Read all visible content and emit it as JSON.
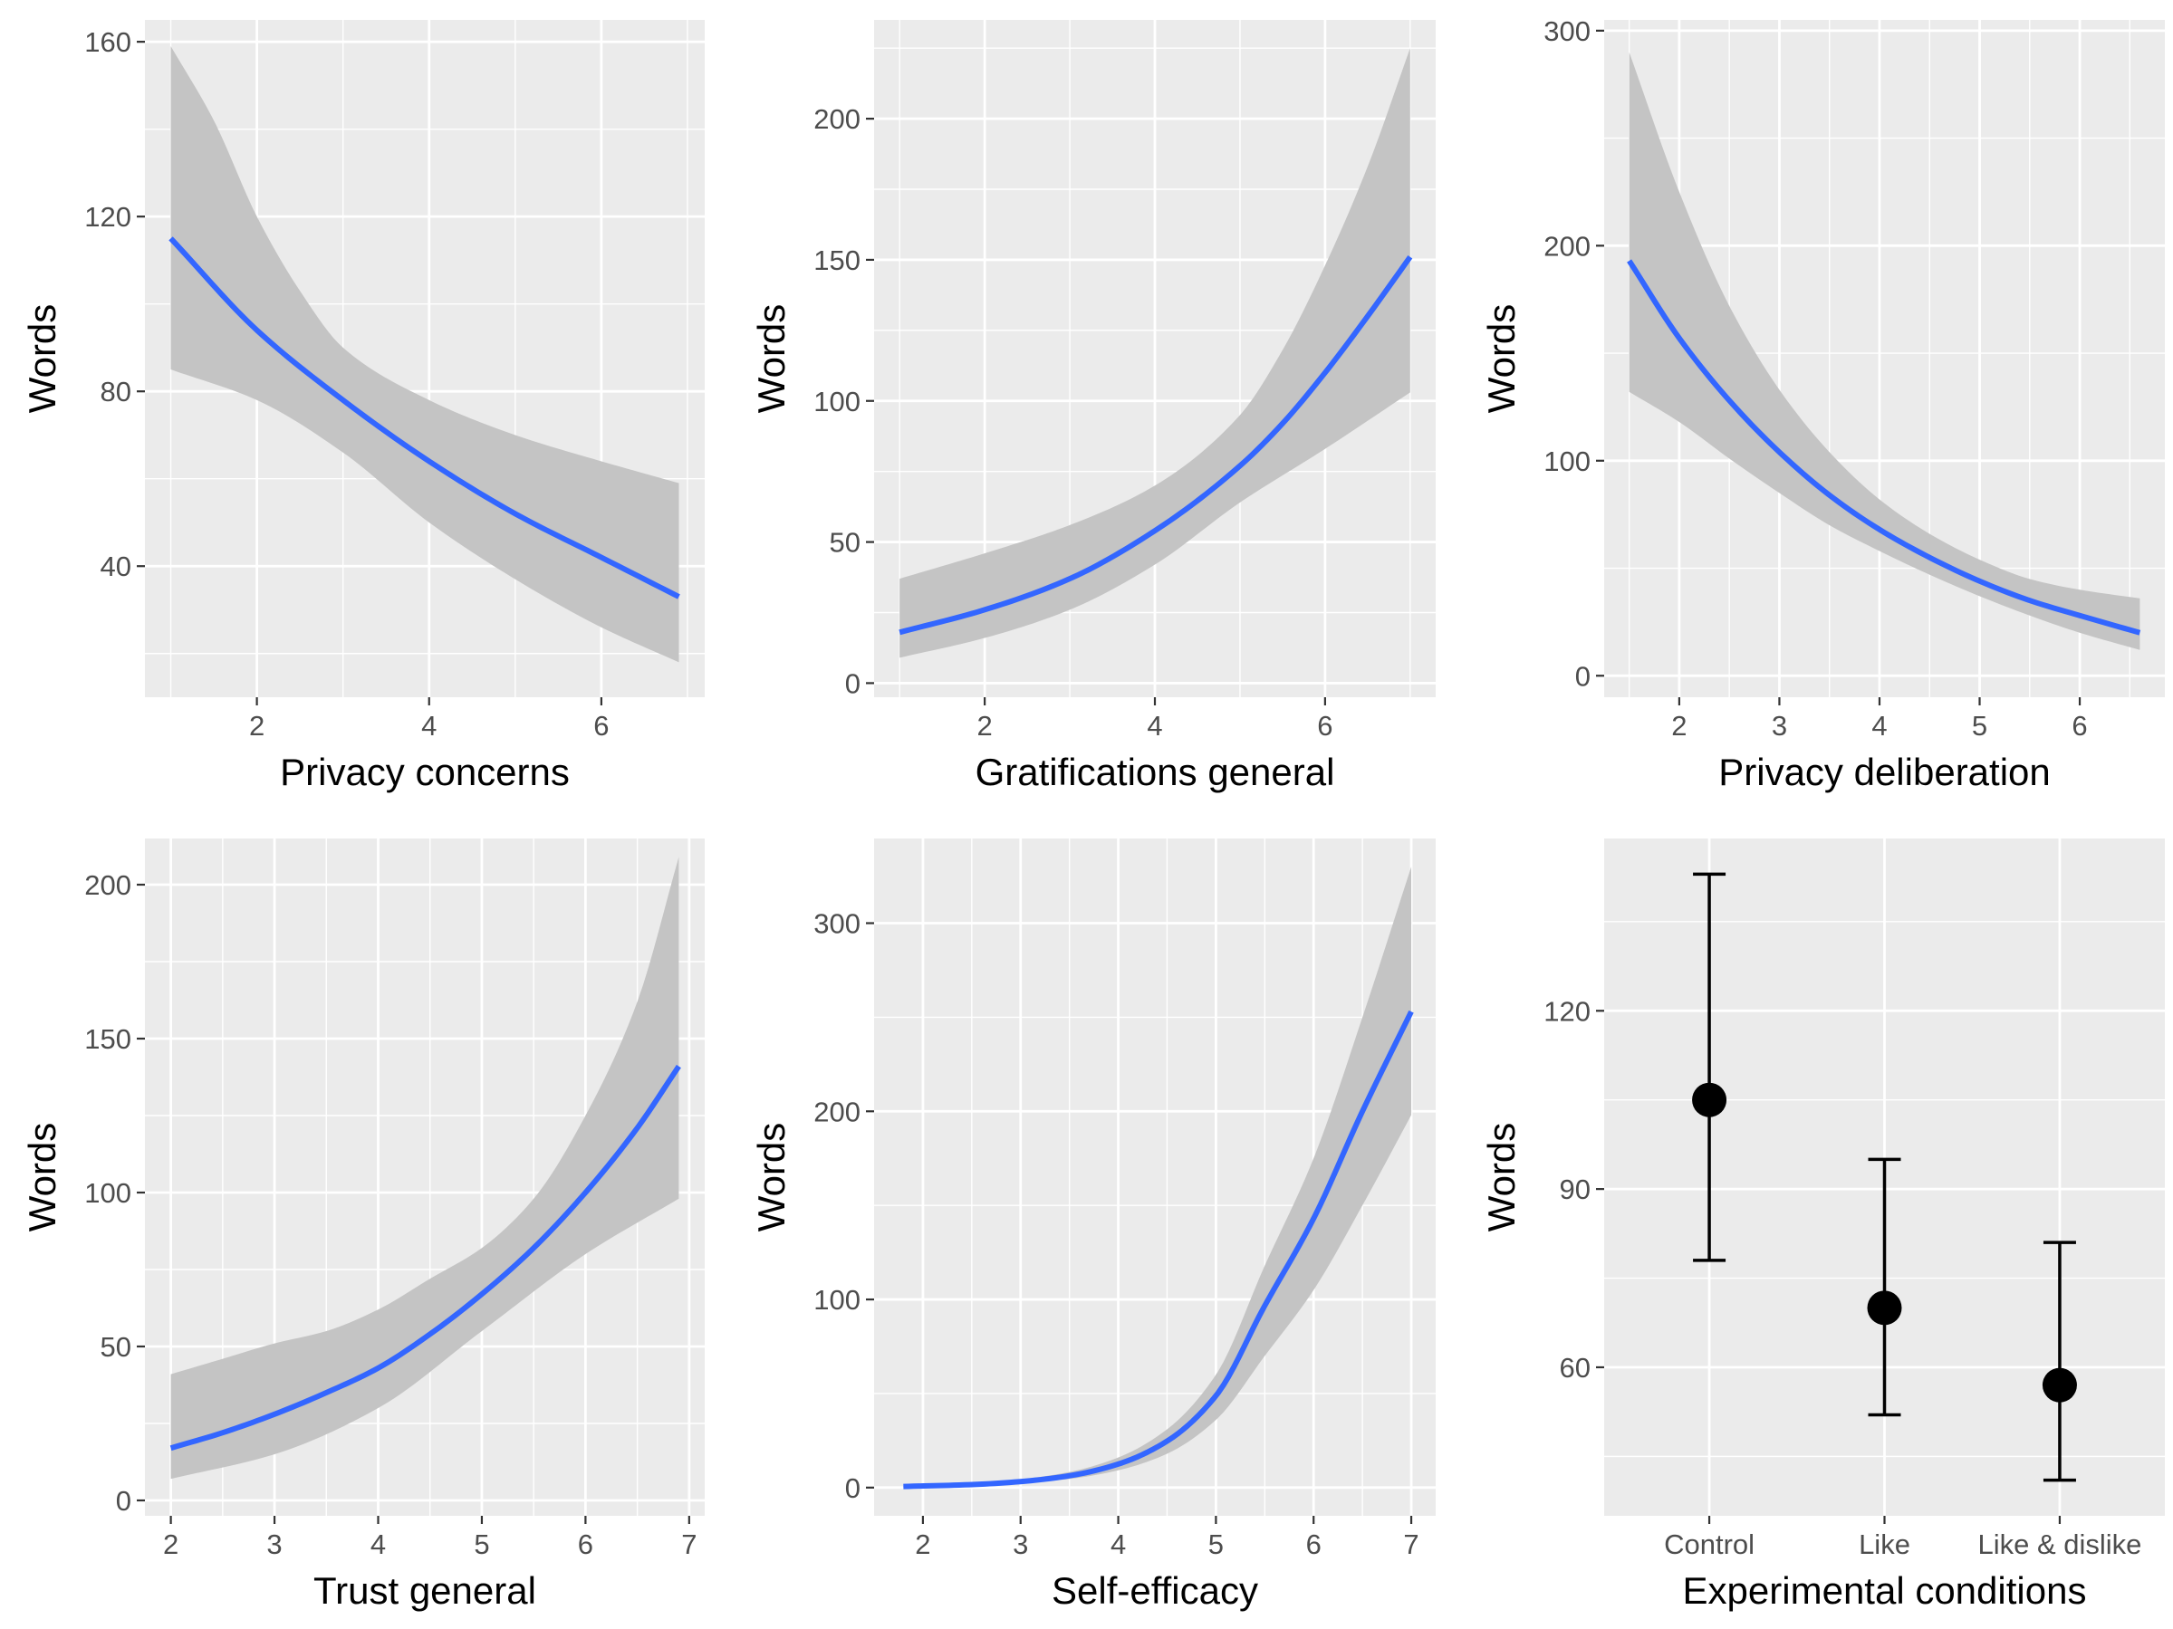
{
  "colors": {
    "panel_background": "#ebebeb",
    "grid_major": "#ffffff",
    "ribbon": "#c4c4c4",
    "line": "#3366ff",
    "point": "#000000",
    "tick_text": "#4d4d4d",
    "title_text": "#000000"
  },
  "chart_data": [
    {
      "id": "privacy-concerns",
      "type": "line",
      "xlabel": "Privacy concerns",
      "ylabel": "Words",
      "xlim": [
        0.7,
        7.2
      ],
      "ylim": [
        10,
        165
      ],
      "xticks": [
        2,
        4,
        6
      ],
      "xtick_labels": [
        "2",
        "4",
        "6"
      ],
      "yticks": [
        40,
        80,
        120,
        160
      ],
      "ytick_labels": [
        "40",
        "80",
        "120",
        "160"
      ],
      "series": [
        {
          "name": "fit",
          "x": [
            1,
            2,
            3,
            4,
            5,
            6,
            6.9
          ],
          "y": [
            115,
            94,
            78,
            64,
            52,
            42,
            33
          ]
        },
        {
          "name": "ci_lower",
          "x": [
            1,
            2,
            3,
            4,
            5,
            6,
            6.9
          ],
          "y": [
            85,
            78,
            66,
            50,
            37,
            26,
            18
          ]
        },
        {
          "name": "ci_upper",
          "x": [
            1,
            1.5,
            2,
            2.5,
            3,
            4,
            5,
            6,
            6.9
          ],
          "y": [
            159,
            142,
            120,
            103,
            90,
            78,
            70,
            64,
            59
          ]
        }
      ]
    },
    {
      "id": "gratifications-general",
      "type": "line",
      "xlabel": "Gratifications general",
      "ylabel": "Words",
      "xlim": [
        0.7,
        7.3
      ],
      "ylim": [
        -5,
        235
      ],
      "xticks": [
        2,
        4,
        6
      ],
      "xtick_labels": [
        "2",
        "4",
        "6"
      ],
      "yticks": [
        0,
        50,
        100,
        150,
        200
      ],
      "ytick_labels": [
        "0",
        "50",
        "100",
        "150",
        "200"
      ],
      "series": [
        {
          "name": "fit",
          "x": [
            1,
            2,
            3,
            4,
            5,
            5.5,
            6,
            6.5,
            7
          ],
          "y": [
            18,
            26,
            37,
            54,
            77,
            92,
            110,
            130,
            151
          ]
        },
        {
          "name": "ci_lower",
          "x": [
            1,
            2,
            3,
            4,
            5,
            6,
            7
          ],
          "y": [
            9,
            16,
            26,
            42,
            64,
            83,
            103
          ]
        },
        {
          "name": "ci_upper",
          "x": [
            1,
            2,
            3,
            4,
            5,
            5.5,
            6,
            6.5,
            7
          ],
          "y": [
            37,
            46,
            56,
            70,
            95,
            118,
            148,
            183,
            225
          ]
        }
      ]
    },
    {
      "id": "privacy-deliberation",
      "type": "line",
      "xlabel": "Privacy deliberation",
      "ylabel": "Words",
      "xlim": [
        1.25,
        6.85
      ],
      "ylim": [
        -10,
        305
      ],
      "xticks": [
        2,
        3,
        4,
        5,
        6
      ],
      "xtick_labels": [
        "2",
        "3",
        "4",
        "5",
        "6"
      ],
      "yticks": [
        0,
        100,
        200,
        300
      ],
      "ytick_labels": [
        "0",
        "100",
        "200",
        "300"
      ],
      "series": [
        {
          "name": "fit",
          "x": [
            1.5,
            2,
            2.5,
            3,
            3.5,
            4,
            4.5,
            5,
            5.5,
            6,
            6.6
          ],
          "y": [
            193,
            157,
            128,
            104,
            84,
            68,
            55,
            44,
            35,
            28,
            20
          ]
        },
        {
          "name": "ci_lower",
          "x": [
            1.5,
            2,
            2.5,
            3,
            3.5,
            4,
            4.5,
            5,
            5.5,
            6,
            6.6
          ],
          "y": [
            132,
            118,
            101,
            85,
            70,
            58,
            47,
            37,
            28,
            20,
            12
          ]
        },
        {
          "name": "ci_upper",
          "x": [
            1.5,
            2,
            2.5,
            3,
            3.5,
            4,
            4.5,
            5,
            5.5,
            6,
            6.6
          ],
          "y": [
            290,
            225,
            172,
            133,
            104,
            82,
            66,
            54,
            45,
            40,
            36
          ]
        }
      ]
    },
    {
      "id": "trust-general",
      "type": "line",
      "xlabel": "Trust general",
      "ylabel": "Words",
      "xlim": [
        1.75,
        7.15
      ],
      "ylim": [
        -5,
        215
      ],
      "xticks": [
        2,
        3,
        4,
        5,
        6,
        7
      ],
      "xtick_labels": [
        "2",
        "3",
        "4",
        "5",
        "6",
        "7"
      ],
      "yticks": [
        0,
        50,
        100,
        150,
        200
      ],
      "ytick_labels": [
        "0",
        "50",
        "100",
        "150",
        "200"
      ],
      "series": [
        {
          "name": "fit",
          "x": [
            2,
            2.5,
            3,
            3.5,
            4,
            4.5,
            5,
            5.5,
            6,
            6.5,
            6.9
          ],
          "y": [
            17,
            22,
            28,
            35,
            43,
            54,
            67,
            82,
            100,
            121,
            141
          ]
        },
        {
          "name": "ci_lower",
          "x": [
            2,
            3,
            4,
            5,
            6,
            6.9
          ],
          "y": [
            7,
            15,
            30,
            55,
            80,
            98
          ]
        },
        {
          "name": "ci_upper",
          "x": [
            2,
            2.5,
            3,
            3.5,
            4,
            4.5,
            5,
            5.5,
            6,
            6.5,
            6.9
          ],
          "y": [
            41,
            46,
            51,
            55,
            62,
            72,
            82,
            98,
            125,
            162,
            209
          ]
        }
      ]
    },
    {
      "id": "self-efficacy",
      "type": "line",
      "xlabel": "Self-efficacy",
      "ylabel": "Words",
      "xlim": [
        1.5,
        7.25
      ],
      "ylim": [
        -15,
        345
      ],
      "xticks": [
        2,
        3,
        4,
        5,
        6,
        7
      ],
      "xtick_labels": [
        "2",
        "3",
        "4",
        "5",
        "6",
        "7"
      ],
      "yticks": [
        0,
        100,
        200,
        300
      ],
      "ytick_labels": [
        "0",
        "100",
        "200",
        "300"
      ],
      "series": [
        {
          "name": "fit",
          "x": [
            1.8,
            2.5,
            3,
            3.5,
            4,
            4.5,
            5,
            5.5,
            6,
            6.5,
            7
          ],
          "y": [
            0.6,
            1.6,
            3.2,
            6.3,
            12.5,
            24.7,
            48.8,
            96.7,
            143,
            200,
            253
          ]
        },
        {
          "name": "ci_lower",
          "x": [
            1.8,
            2.5,
            3,
            3.5,
            4,
            4.5,
            5,
            5.5,
            6,
            6.5,
            7
          ],
          "y": [
            0.3,
            1.0,
            2.3,
            4.6,
            9.2,
            18,
            36,
            70,
            105,
            150,
            198
          ]
        },
        {
          "name": "ci_upper",
          "x": [
            1.8,
            2.5,
            3,
            3.5,
            4,
            4.5,
            5,
            5.5,
            6,
            6.5,
            7
          ],
          "y": [
            1.0,
            2.3,
            4.4,
            8.3,
            16,
            31,
            60,
            118,
            175,
            250,
            330
          ]
        }
      ]
    },
    {
      "id": "experimental-conditions",
      "type": "scatter",
      "xlabel": "Experimental conditions",
      "ylabel": "Words",
      "categories": [
        "Control",
        "Like",
        "Like & dislike"
      ],
      "xlim": [
        0.4,
        3.6
      ],
      "ylim": [
        35,
        149
      ],
      "yticks": [
        60,
        90,
        120
      ],
      "ytick_labels": [
        "60",
        "90",
        "120"
      ],
      "values": [
        105,
        70,
        57
      ],
      "error_low": [
        78,
        52,
        41
      ],
      "error_high": [
        143,
        95,
        81
      ]
    }
  ]
}
